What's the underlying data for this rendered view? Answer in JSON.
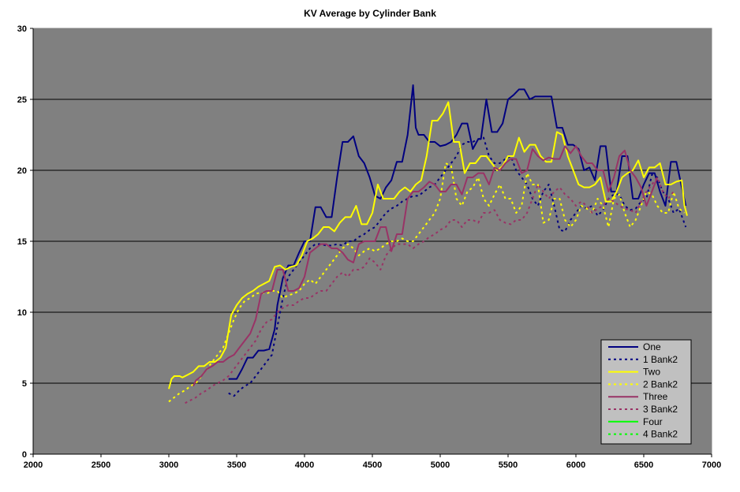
{
  "chart_data": {
    "type": "line",
    "title": "KV Average by Cylinder Bank",
    "xlabel": "",
    "ylabel": "",
    "xlim": [
      2000,
      7000
    ],
    "ylim": [
      0,
      30
    ],
    "xticks": [
      "2000",
      "2500",
      "3000",
      "3500",
      "4000",
      "4500",
      "5000",
      "5500",
      "6000",
      "6500",
      "7000"
    ],
    "yticks": [
      "0",
      "5",
      "10",
      "15",
      "20",
      "25",
      "30"
    ],
    "grid": "horizontal",
    "plot_background": "#808080",
    "legend_position": "bottom-right",
    "series": [
      {
        "name": "One",
        "color": "#000080",
        "dash": "solid",
        "x": [
          3440,
          3500,
          3540,
          3580,
          3620,
          3660,
          3700,
          3740,
          3780,
          3800,
          3840,
          3880,
          3920,
          3960,
          4000,
          4040,
          4080,
          4120,
          4160,
          4200,
          4240,
          4280,
          4320,
          4360,
          4400,
          4440,
          4480,
          4520,
          4560,
          4600,
          4640,
          4680,
          4720,
          4760,
          4800,
          4820,
          4840,
          4880,
          4920,
          4960,
          5000,
          5040,
          5080,
          5120,
          5160,
          5200,
          5240,
          5280,
          5300,
          5340,
          5380,
          5420,
          5460,
          5500,
          5540,
          5580,
          5620,
          5660,
          5700,
          5740,
          5780,
          5820,
          5860,
          5900,
          5940,
          5980,
          6020,
          6060,
          6100,
          6140,
          6180,
          6220,
          6260,
          6300,
          6340,
          6380,
          6420,
          6460,
          6500,
          6540,
          6580,
          6620,
          6660,
          6700,
          6740,
          6780,
          6810
        ],
        "y": [
          5.3,
          5.3,
          6.0,
          6.8,
          6.8,
          7.3,
          7.3,
          7.4,
          8.8,
          10.5,
          12.4,
          13.3,
          13.3,
          14.2,
          15.0,
          15.0,
          17.4,
          17.4,
          16.7,
          16.7,
          19.5,
          22.0,
          22.0,
          22.4,
          21.0,
          20.5,
          19.5,
          18.2,
          18.0,
          18.8,
          19.3,
          20.6,
          20.6,
          22.5,
          26.0,
          23.0,
          22.5,
          22.5,
          22.0,
          22.0,
          21.7,
          21.8,
          22.0,
          22.5,
          23.3,
          23.3,
          21.5,
          22.2,
          22.2,
          25.0,
          22.7,
          22.7,
          23.3,
          25.0,
          25.3,
          25.7,
          25.7,
          25.0,
          25.2,
          25.2,
          25.2,
          25.2,
          23.0,
          23.0,
          21.8,
          21.8,
          21.5,
          20.0,
          20.2,
          19.3,
          21.7,
          21.7,
          18.5,
          18.5,
          21.0,
          21.0,
          18.0,
          18.0,
          19.0,
          19.8,
          19.8,
          18.5,
          17.5,
          20.6,
          20.6,
          18.8,
          17.5
        ]
      },
      {
        "name": "1 Bank2",
        "color": "#000080",
        "dash": "dotted",
        "x": [
          3440,
          3480,
          3520,
          3560,
          3600,
          3640,
          3680,
          3720,
          3760,
          3800,
          3840,
          3880,
          3920,
          3960,
          4000,
          4040,
          4080,
          4120,
          4160,
          4200,
          4240,
          4280,
          4320,
          4360,
          4400,
          4440,
          4480,
          4520,
          4560,
          4600,
          4640,
          4680,
          4720,
          4760,
          4800,
          4840,
          4880,
          4920,
          4960,
          5000,
          5040,
          5080,
          5120,
          5160,
          5200,
          5240,
          5280,
          5320,
          5360,
          5400,
          5440,
          5480,
          5520,
          5560,
          5600,
          5640,
          5680,
          5720,
          5760,
          5800,
          5840,
          5880,
          5920,
          5960,
          6000,
          6040,
          6080,
          6120,
          6160,
          6200,
          6240,
          6280,
          6320,
          6360,
          6400,
          6440,
          6480,
          6520,
          6560,
          6600,
          6640,
          6680,
          6720,
          6760,
          6810
        ],
        "y": [
          4.3,
          4.1,
          4.5,
          4.8,
          5.0,
          5.5,
          6.0,
          6.5,
          7.0,
          9.0,
          11.0,
          12.5,
          13.0,
          13.5,
          14.0,
          14.5,
          14.8,
          14.8,
          14.7,
          14.7,
          14.8,
          14.7,
          15.0,
          15.0,
          15.3,
          15.5,
          15.8,
          16.0,
          16.5,
          17.0,
          17.3,
          17.5,
          17.8,
          18.0,
          18.2,
          18.2,
          18.5,
          18.8,
          19.0,
          19.5,
          20.0,
          20.5,
          21.0,
          21.8,
          22.0,
          22.0,
          22.2,
          22.3,
          21.0,
          20.5,
          20.5,
          20.8,
          21.0,
          20.0,
          19.5,
          19.0,
          18.0,
          17.5,
          18.5,
          19.0,
          17.5,
          15.8,
          15.7,
          16.5,
          17.0,
          17.5,
          17.3,
          17.5,
          16.8,
          17.2,
          18.0,
          18.3,
          18.3,
          17.5,
          17.2,
          17.3,
          17.8,
          18.0,
          19.7,
          19.5,
          18.5,
          18.0,
          17.0,
          17.3,
          16.0
        ]
      },
      {
        "name": "Two",
        "color": "#ffff00",
        "dash": "solid",
        "x": [
          3000,
          3020,
          3040,
          3080,
          3100,
          3140,
          3180,
          3220,
          3260,
          3300,
          3340,
          3380,
          3420,
          3460,
          3500,
          3540,
          3580,
          3620,
          3660,
          3700,
          3740,
          3780,
          3820,
          3860,
          3900,
          3940,
          3980,
          4020,
          4060,
          4100,
          4140,
          4180,
          4220,
          4260,
          4300,
          4340,
          4380,
          4420,
          4460,
          4500,
          4540,
          4580,
          4620,
          4660,
          4700,
          4740,
          4780,
          4820,
          4860,
          4900,
          4940,
          4980,
          5020,
          5060,
          5100,
          5140,
          5180,
          5220,
          5260,
          5300,
          5340,
          5380,
          5420,
          5460,
          5500,
          5540,
          5580,
          5620,
          5660,
          5700,
          5740,
          5780,
          5820,
          5860,
          5900,
          5940,
          5980,
          6020,
          6060,
          6100,
          6140,
          6180,
          6220,
          6260,
          6300,
          6340,
          6380,
          6420,
          6460,
          6500,
          6540,
          6580,
          6620,
          6660,
          6700,
          6740,
          6780,
          6800,
          6820
        ],
        "y": [
          4.6,
          5.3,
          5.5,
          5.5,
          5.4,
          5.6,
          5.8,
          6.2,
          6.2,
          6.5,
          6.5,
          6.8,
          7.5,
          9.8,
          10.5,
          11.0,
          11.3,
          11.5,
          11.8,
          12.0,
          12.2,
          13.2,
          13.3,
          13.0,
          13.2,
          13.3,
          14.0,
          15.0,
          15.2,
          15.5,
          16.0,
          16.0,
          15.7,
          16.3,
          16.7,
          16.7,
          17.5,
          16.2,
          16.2,
          17.0,
          19.0,
          18.0,
          18.0,
          18.0,
          18.5,
          18.8,
          18.5,
          19.0,
          19.3,
          21.0,
          23.5,
          23.5,
          24.0,
          24.8,
          22.0,
          22.0,
          19.8,
          20.5,
          20.5,
          21.0,
          21.0,
          20.5,
          20.0,
          20.3,
          21.0,
          21.0,
          22.3,
          21.3,
          21.8,
          21.8,
          21.0,
          20.6,
          20.6,
          22.7,
          22.5,
          21.0,
          20.0,
          19.0,
          18.8,
          18.8,
          19.0,
          19.5,
          17.8,
          17.8,
          18.5,
          19.5,
          19.8,
          20.0,
          20.7,
          19.5,
          20.2,
          20.2,
          20.5,
          19.0,
          19.0,
          19.2,
          19.3,
          17.5,
          16.8
        ]
      },
      {
        "name": "2 Bank2",
        "color": "#ffff00",
        "dash": "dotted",
        "x": [
          3000,
          3040,
          3080,
          3120,
          3160,
          3200,
          3240,
          3280,
          3320,
          3360,
          3400,
          3440,
          3480,
          3520,
          3560,
          3600,
          3640,
          3680,
          3720,
          3760,
          3800,
          3840,
          3880,
          3920,
          3960,
          4000,
          4040,
          4080,
          4120,
          4160,
          4200,
          4240,
          4280,
          4320,
          4360,
          4400,
          4440,
          4480,
          4520,
          4560,
          4600,
          4640,
          4680,
          4720,
          4760,
          4800,
          4840,
          4880,
          4920,
          4960,
          5000,
          5040,
          5080,
          5120,
          5160,
          5200,
          5240,
          5280,
          5320,
          5360,
          5400,
          5440,
          5480,
          5520,
          5560,
          5600,
          5640,
          5680,
          5720,
          5760,
          5800,
          5840,
          5880,
          5920,
          5960,
          6000,
          6040,
          6080,
          6120,
          6160,
          6200,
          6240,
          6280,
          6320,
          6360,
          6400,
          6440,
          6480,
          6520,
          6560,
          6600,
          6640,
          6680,
          6720,
          6760,
          6800
        ],
        "y": [
          3.7,
          4.0,
          4.3,
          4.5,
          4.8,
          5.0,
          5.5,
          6.0,
          6.5,
          7.0,
          7.5,
          8.5,
          9.5,
          10.3,
          10.8,
          11.0,
          11.3,
          11.4,
          11.3,
          11.5,
          11.5,
          11.0,
          11.2,
          11.3,
          11.5,
          12.0,
          12.3,
          12.0,
          12.5,
          13.0,
          13.5,
          14.0,
          14.5,
          14.8,
          14.5,
          14.0,
          14.3,
          14.5,
          14.3,
          14.5,
          14.8,
          15.0,
          15.0,
          15.2,
          15.0,
          15.0,
          15.5,
          16.0,
          16.5,
          17.0,
          18.0,
          20.5,
          20.3,
          18.0,
          17.5,
          18.5,
          18.8,
          19.5,
          18.0,
          17.5,
          18.3,
          19.0,
          18.0,
          18.0,
          17.0,
          17.5,
          19.8,
          19.0,
          19.0,
          16.3,
          16.5,
          18.0,
          18.0,
          16.5,
          16.0,
          16.5,
          17.5,
          17.3,
          17.0,
          18.0,
          17.5,
          16.0,
          18.0,
          18.3,
          17.0,
          16.0,
          16.5,
          17.5,
          18.5,
          18.3,
          17.5,
          17.0,
          17.0,
          18.5,
          17.3,
          17.0
        ]
      },
      {
        "name": "Three",
        "color": "#993366",
        "dash": "solid",
        "x": [
          3180,
          3200,
          3240,
          3280,
          3320,
          3360,
          3400,
          3440,
          3480,
          3520,
          3560,
          3600,
          3640,
          3680,
          3720,
          3760,
          3800,
          3840,
          3880,
          3920,
          3960,
          4000,
          4040,
          4080,
          4120,
          4160,
          4200,
          4240,
          4280,
          4320,
          4360,
          4400,
          4440,
          4480,
          4520,
          4560,
          4600,
          4640,
          4680,
          4720,
          4760,
          4800,
          4840,
          4880,
          4920,
          4960,
          5000,
          5040,
          5080,
          5120,
          5160,
          5200,
          5240,
          5280,
          5320,
          5360,
          5400,
          5440,
          5480,
          5520,
          5560,
          5600,
          5640,
          5680,
          5720,
          5760,
          5800,
          5840,
          5880,
          5920,
          5960,
          6000,
          6040,
          6080,
          6120,
          6160,
          6200,
          6240,
          6280,
          6320,
          6360,
          6400,
          6440,
          6480,
          6520,
          6560,
          6600
        ],
        "y": [
          4.8,
          5.2,
          5.5,
          6.0,
          6.2,
          6.5,
          6.5,
          6.8,
          7.0,
          7.5,
          8.0,
          8.5,
          9.5,
          11.3,
          11.5,
          11.5,
          13.0,
          13.0,
          11.5,
          11.5,
          11.7,
          12.5,
          14.2,
          14.5,
          14.8,
          14.8,
          14.5,
          14.5,
          14.2,
          13.7,
          13.5,
          14.8,
          15.0,
          15.0,
          15.0,
          16.0,
          16.0,
          14.3,
          15.5,
          15.5,
          18.0,
          18.5,
          18.5,
          18.8,
          19.2,
          19.0,
          18.5,
          18.5,
          19.0,
          19.0,
          18.3,
          19.5,
          19.5,
          19.8,
          19.8,
          19.0,
          20.2,
          20.0,
          20.5,
          20.8,
          20.8,
          19.8,
          20.0,
          21.5,
          21.0,
          20.7,
          20.9,
          20.8,
          20.8,
          21.7,
          21.2,
          21.7,
          21.0,
          20.5,
          20.5,
          20.0,
          20.0,
          18.5,
          19.5,
          21.0,
          21.4,
          20.0,
          19.5,
          18.8,
          17.5,
          18.5,
          19.5
        ]
      },
      {
        "name": "3 Bank2",
        "color": "#993366",
        "dash": "dotted",
        "x": [
          3120,
          3160,
          3200,
          3240,
          3280,
          3320,
          3360,
          3400,
          3440,
          3480,
          3520,
          3560,
          3600,
          3640,
          3680,
          3720,
          3760,
          3800,
          3840,
          3880,
          3920,
          3960,
          4000,
          4040,
          4080,
          4120,
          4160,
          4200,
          4240,
          4280,
          4320,
          4360,
          4400,
          4440,
          4480,
          4520,
          4560,
          4600,
          4640,
          4680,
          4720,
          4760,
          4800,
          4840,
          4880,
          4920,
          4960,
          5000,
          5040,
          5080,
          5120,
          5160,
          5200,
          5240,
          5280,
          5320,
          5360,
          5400,
          5440,
          5480,
          5520,
          5560,
          5600,
          5640,
          5680,
          5720,
          5760,
          5800,
          5840,
          5880,
          5920,
          5960,
          6000,
          6040,
          6080,
          6120,
          6160,
          6200,
          6240,
          6280,
          6320,
          6360,
          6400,
          6440,
          6480,
          6520,
          6560,
          6600,
          6640,
          6680,
          6720
        ],
        "y": [
          3.6,
          3.8,
          4.0,
          4.3,
          4.5,
          4.8,
          5.0,
          5.2,
          5.5,
          6.0,
          6.5,
          7.0,
          7.5,
          8.0,
          8.8,
          9.3,
          9.5,
          10.0,
          10.3,
          10.5,
          10.5,
          10.8,
          11.0,
          11.0,
          11.3,
          11.5,
          11.5,
          12.0,
          12.5,
          12.8,
          12.5,
          13.0,
          13.0,
          13.2,
          13.8,
          13.5,
          13.0,
          14.0,
          14.5,
          14.8,
          14.8,
          14.8,
          14.5,
          14.8,
          15.0,
          15.3,
          15.5,
          15.8,
          16.0,
          16.5,
          16.5,
          16.0,
          16.5,
          16.5,
          16.3,
          17.0,
          17.0,
          17.2,
          16.5,
          16.3,
          16.2,
          16.5,
          16.5,
          17.0,
          18.0,
          19.0,
          18.5,
          18.0,
          18.5,
          18.8,
          18.3,
          18.0,
          17.5,
          17.8,
          17.5,
          17.0,
          17.3,
          17.5,
          18.0,
          17.8,
          17.5,
          17.3,
          17.2,
          17.0,
          17.8,
          18.5,
          19.0,
          19.5,
          18.5,
          18.0,
          18.5
        ]
      },
      {
        "name": "Four",
        "color": "#00ff00",
        "dash": "solid",
        "x": [],
        "y": []
      },
      {
        "name": "4 Bank2",
        "color": "#00ff00",
        "dash": "dotted",
        "x": [],
        "y": []
      }
    ]
  }
}
